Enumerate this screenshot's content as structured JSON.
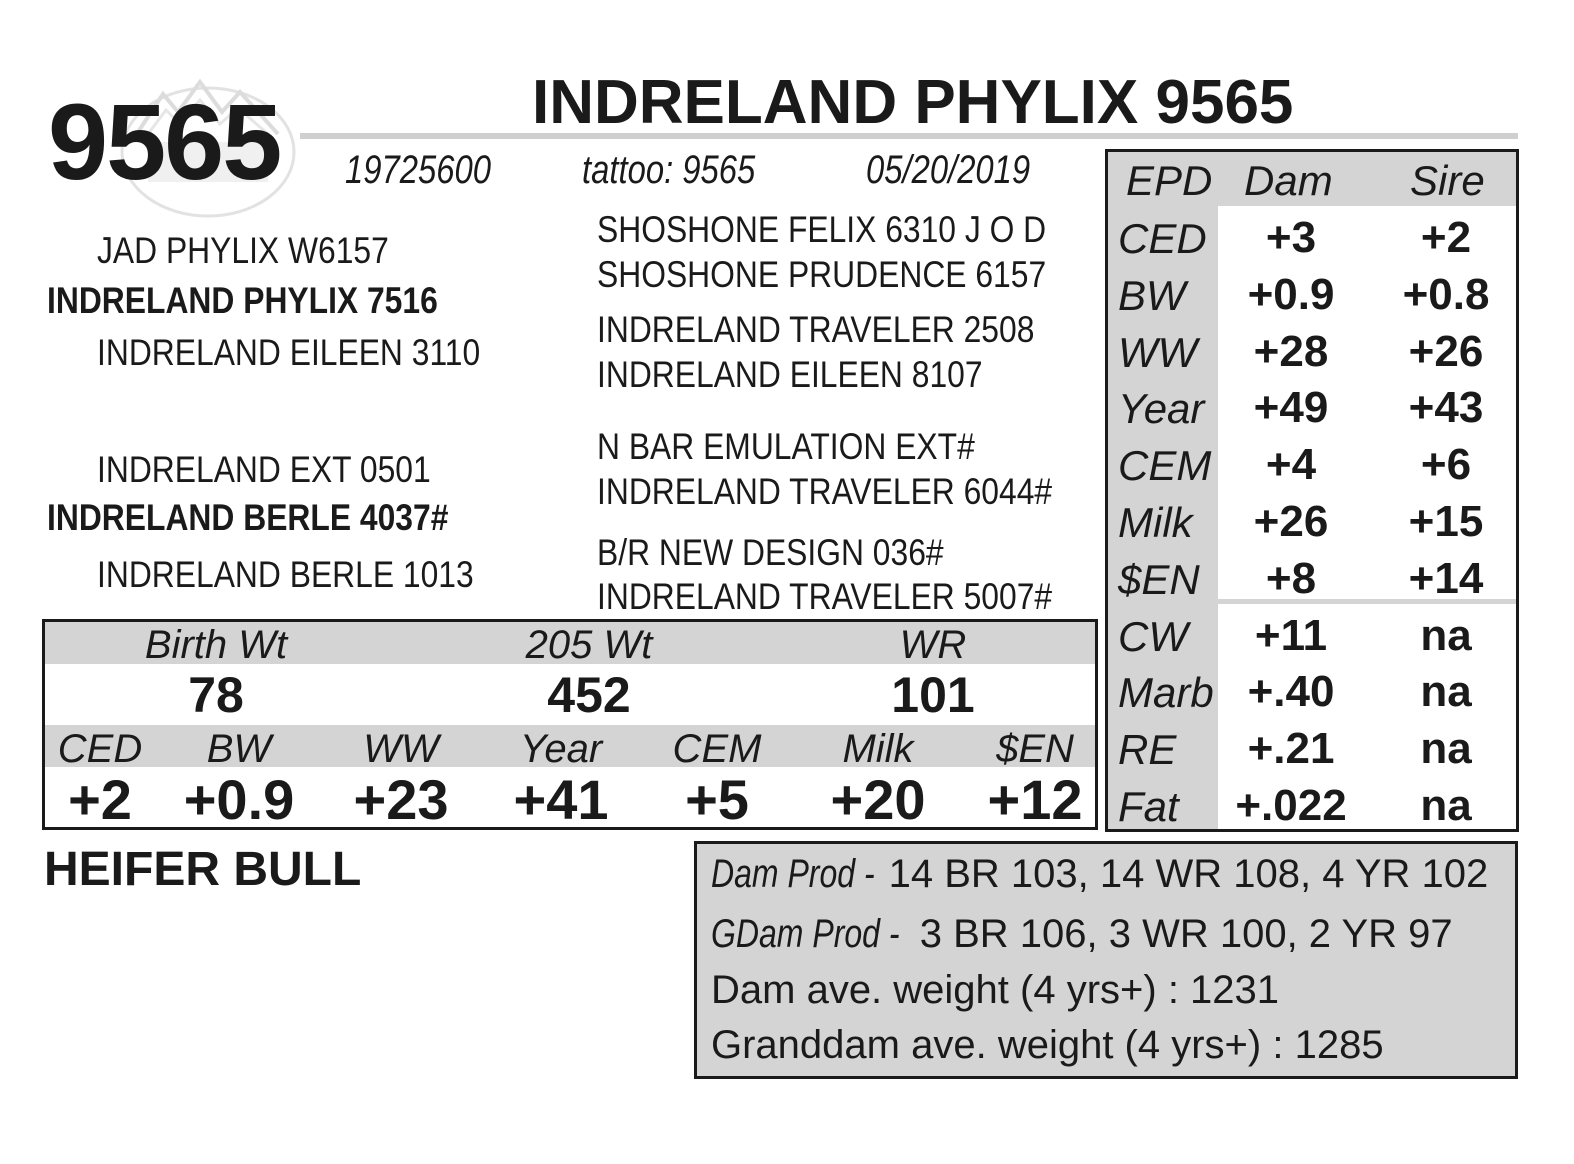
{
  "lot_number": "9565",
  "animal_name": "INDRELAND PHYLIX 9565",
  "registration": "19725600",
  "tattoo": "tattoo: 9565",
  "birth_date": "05/20/2019",
  "pedigree": {
    "sire_side": {
      "sire_sire": "JAD PHYLIX W6157",
      "sire": "INDRELAND PHYLIX 7516",
      "sire_dam": "INDRELAND EILEEN 3110",
      "ss_sire": "SHOSHONE FELIX 6310 J O D",
      "ss_dam": "SHOSHONE PRUDENCE 6157",
      "sd_sire": "INDRELAND TRAVELER 2508",
      "sd_dam": "INDRELAND EILEEN 8107"
    },
    "dam_side": {
      "dam_sire": "INDRELAND EXT 0501",
      "dam": "INDRELAND BERLE 4037#",
      "dam_dam": "INDRELAND BERLE 1013",
      "ds_sire": "N BAR EMULATION EXT#",
      "ds_dam": "INDRELAND TRAVELER 6044#",
      "dd_sire": "B/R NEW DESIGN 036#",
      "dd_dam": "INDRELAND TRAVELER 5007#"
    }
  },
  "weights": {
    "headers": [
      "Birth Wt",
      "205 Wt",
      "WR"
    ],
    "values": [
      "78",
      "452",
      "101"
    ]
  },
  "calf_epds": {
    "headers": [
      "CED",
      "BW",
      "WW",
      "Year",
      "CEM",
      "Milk",
      "$EN"
    ],
    "values": [
      "+2",
      "+0.9",
      "+23",
      "+41",
      "+5",
      "+20",
      "+12"
    ]
  },
  "designation": "HEIFER BULL",
  "epd_table": {
    "headers": [
      "EPD",
      "Dam",
      "Sire"
    ],
    "rows": [
      {
        "trait": "CED",
        "dam": "+3",
        "sire": "+2"
      },
      {
        "trait": "BW",
        "dam": "+0.9",
        "sire": "+0.8"
      },
      {
        "trait": "WW",
        "dam": "+28",
        "sire": "+26"
      },
      {
        "trait": "Year",
        "dam": "+49",
        "sire": "+43"
      },
      {
        "trait": "CEM",
        "dam": "+4",
        "sire": "+6"
      },
      {
        "trait": "Milk",
        "dam": "+26",
        "sire": "+15"
      },
      {
        "trait": "$EN",
        "dam": "+8",
        "sire": "+14"
      },
      {
        "trait": "CW",
        "dam": "+11",
        "sire": "na"
      },
      {
        "trait": "Marb",
        "dam": "+.40",
        "sire": "na"
      },
      {
        "trait": "RE",
        "dam": "+.21",
        "sire": "na"
      },
      {
        "trait": "Fat",
        "dam": "+.022",
        "sire": "na"
      }
    ]
  },
  "production": {
    "dam_prod_label": "Dam Prod -",
    "dam_prod_value": " 14 BR 103, 14 WR 108, 4 YR 102",
    "gdam_prod_label": "GDam Prod -",
    "gdam_prod_value": " 3 BR 106, 3 WR 100, 2 YR 97",
    "dam_weight": "Dam ave. weight (4 yrs+) : 1231",
    "granddam_weight": "Granddam ave. weight (4 yrs+) : 1285"
  },
  "colors": {
    "band_gray": "#d4d4d4",
    "text": "#1a1a1a"
  }
}
